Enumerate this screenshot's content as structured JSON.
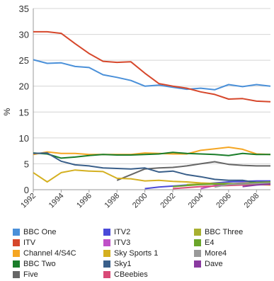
{
  "chart_data": {
    "type": "line",
    "title": "",
    "xlabel": "",
    "ylabel": "%",
    "x": [
      1992,
      1993,
      1994,
      1995,
      1996,
      1997,
      1998,
      1999,
      2000,
      2001,
      2002,
      2003,
      2004,
      2005,
      2006,
      2007,
      2008,
      2009
    ],
    "xlim": [
      1992,
      2009
    ],
    "ylim": [
      0,
      35
    ],
    "xticks": [
      "1992",
      "1994",
      "1996",
      "1998",
      "2000",
      "2002",
      "2004",
      "2006",
      "2008"
    ],
    "yticks": [
      "0",
      "5",
      "10",
      "15",
      "20",
      "25",
      "30",
      "35"
    ],
    "grid": true,
    "legend_position": "bottom",
    "series": [
      {
        "name": "BBC One",
        "color": "#4a90d9",
        "values": [
          25.1,
          24.4,
          24.5,
          23.8,
          23.6,
          22.2,
          21.7,
          21.1,
          20.0,
          20.2,
          19.8,
          19.4,
          19.6,
          19.3,
          20.3,
          19.9,
          20.3,
          20.0
        ]
      },
      {
        "name": "ITV",
        "color": "#d6472b",
        "values": [
          30.5,
          30.5,
          30.2,
          28.2,
          26.3,
          24.8,
          24.6,
          24.7,
          22.5,
          20.5,
          20.0,
          19.6,
          18.9,
          18.4,
          17.5,
          17.6,
          17.1,
          17.0
        ]
      },
      {
        "name": "Channel 4/S4C",
        "color": "#f5a623",
        "values": [
          6.8,
          7.3,
          7.0,
          7.0,
          6.8,
          6.8,
          6.8,
          6.8,
          7.1,
          7.0,
          6.9,
          6.9,
          7.6,
          7.9,
          8.2,
          7.8,
          6.9,
          6.8
        ]
      },
      {
        "name": "BBC Two",
        "color": "#1a7d2a",
        "values": [
          7.1,
          6.9,
          6.1,
          6.3,
          6.6,
          6.8,
          6.7,
          6.7,
          6.8,
          6.9,
          7.2,
          7.0,
          6.9,
          6.8,
          6.6,
          7.0,
          6.8,
          6.8
        ]
      },
      {
        "name": "Five",
        "color": "#666666",
        "values": [
          null,
          null,
          null,
          null,
          null,
          null,
          1.8,
          2.9,
          4.0,
          4.2,
          4.3,
          4.6,
          5.0,
          5.4,
          4.9,
          4.7,
          4.6,
          4.6
        ]
      },
      {
        "name": "ITV2",
        "color": "#4a4ad9",
        "values": [
          null,
          null,
          null,
          null,
          null,
          null,
          null,
          null,
          0.2,
          0.5,
          0.7,
          0.9,
          1.1,
          1.3,
          1.5,
          1.6,
          1.7,
          1.7
        ]
      },
      {
        "name": "ITV3",
        "color": "#c050c8",
        "values": [
          null,
          null,
          null,
          null,
          null,
          null,
          null,
          null,
          null,
          null,
          null,
          null,
          0.2,
          0.8,
          1.1,
          1.3,
          1.4,
          1.5
        ]
      },
      {
        "name": "Sky Sports 1",
        "color": "#d4b020",
        "values": [
          3.3,
          1.5,
          3.3,
          3.8,
          3.6,
          3.5,
          2.2,
          2.1,
          1.7,
          1.8,
          1.6,
          1.5,
          1.3,
          1.2,
          1.1,
          1.0,
          1.0,
          0.9
        ]
      },
      {
        "name": "Sky1",
        "color": "#3a5f8a",
        "values": [
          7.0,
          7.1,
          5.5,
          4.8,
          4.6,
          4.2,
          4.1,
          4.0,
          4.2,
          3.4,
          3.6,
          2.9,
          2.5,
          2.0,
          1.8,
          1.8,
          1.4,
          1.2
        ]
      },
      {
        "name": "CBeebies",
        "color": "#d94a77",
        "values": [
          null,
          null,
          null,
          null,
          null,
          null,
          null,
          null,
          null,
          null,
          0.2,
          0.4,
          0.6,
          0.7,
          0.8,
          0.9,
          1.0,
          1.0
        ]
      },
      {
        "name": "BBC Three",
        "color": "#a8b030",
        "values": [
          null,
          null,
          null,
          null,
          null,
          null,
          null,
          null,
          null,
          null,
          null,
          1.0,
          1.1,
          1.2,
          1.2,
          1.1,
          1.2,
          1.3
        ]
      },
      {
        "name": "E4",
        "color": "#6aa52a",
        "values": [
          null,
          null,
          null,
          null,
          null,
          null,
          null,
          null,
          null,
          null,
          0.6,
          0.8,
          1.0,
          1.1,
          1.1,
          1.2,
          1.4,
          1.5
        ]
      },
      {
        "name": "More4",
        "color": "#999999",
        "values": [
          null,
          null,
          null,
          null,
          null,
          null,
          null,
          null,
          null,
          null,
          null,
          null,
          null,
          0.5,
          1.0,
          1.1,
          1.2,
          1.3
        ]
      },
      {
        "name": "Dave",
        "color": "#8a3aa0",
        "values": [
          null,
          null,
          null,
          null,
          null,
          null,
          null,
          null,
          null,
          null,
          null,
          null,
          null,
          null,
          null,
          0.6,
          0.9,
          1.1
        ]
      }
    ]
  },
  "legend": {
    "columns": [
      [
        "BBC One",
        "ITV",
        "Channel 4/S4C",
        "BBC Two",
        "Five"
      ],
      [
        "ITV2",
        "ITV3",
        "Sky Sports 1",
        "Sky1",
        "CBeebies"
      ],
      [
        "BBC Three",
        "E4",
        "More4",
        "Dave"
      ]
    ]
  }
}
